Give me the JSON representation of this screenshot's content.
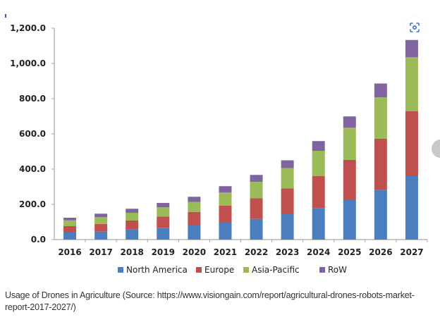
{
  "chart_data": {
    "type": "bar",
    "stacked": true,
    "title": "",
    "xlabel": "",
    "ylabel": "",
    "categories": [
      "2016",
      "2017",
      "2018",
      "2019",
      "2020",
      "2021",
      "2022",
      "2023",
      "2024",
      "2025",
      "2026",
      "2027"
    ],
    "series": [
      {
        "name": "North America",
        "color": "#4a7ebf",
        "values": [
          40,
          45,
          57,
          67,
          80,
          96,
          117,
          144,
          179,
          224,
          283,
          360
        ]
      },
      {
        "name": "Europe",
        "color": "#c0504d",
        "values": [
          36,
          44,
          51,
          64,
          77,
          96,
          118,
          147,
          181,
          228,
          289,
          368
        ]
      },
      {
        "name": "Asia-Pacific",
        "color": "#9bbb59",
        "values": [
          33,
          38,
          44,
          52,
          57,
          75,
          93,
          115,
          144,
          183,
          235,
          307
        ]
      },
      {
        "name": "RoW",
        "color": "#8064a2",
        "values": [
          15,
          20,
          23,
          25,
          29,
          36,
          39,
          44,
          55,
          64,
          79,
          98
        ]
      }
    ],
    "ylim": [
      0,
      1200
    ],
    "yticks": [
      0,
      200,
      400,
      600,
      800,
      1000,
      1200
    ],
    "ytick_labels": [
      "0.0",
      "200.0",
      "400.0",
      "600.0",
      "800.0",
      "1,000.0",
      "1,200.0"
    ],
    "grid": false,
    "legend_position": "bottom"
  },
  "caption": "Usage of Drones in Agriculture (Source: https://www.visiongain.com/report/agricultural-drones-robots-market-report-2017-2027/)",
  "icons": {
    "lens": "lens-search-icon",
    "side": "next-arrow-icon"
  }
}
